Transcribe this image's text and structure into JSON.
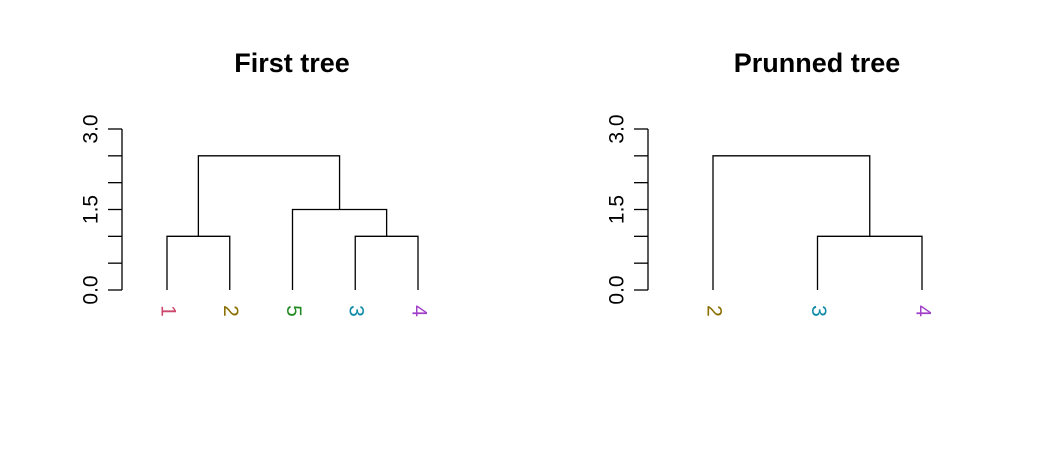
{
  "chart_data": [
    {
      "type": "dendrogram",
      "title": "First tree",
      "ylim": [
        0,
        3
      ],
      "ylabel": "",
      "xlabel": "",
      "y_ticks": [
        0.0,
        0.5,
        1.0,
        1.5,
        2.0,
        2.5,
        3.0
      ],
      "y_tick_labels": [
        "0.0",
        "1.5",
        "3.0"
      ],
      "leaves": [
        {
          "label": "1",
          "color": "#CC476B"
        },
        {
          "label": "2",
          "color": "#8B6F00"
        },
        {
          "label": "5",
          "color": "#238B23"
        },
        {
          "label": "3",
          "color": "#0F8BA8"
        },
        {
          "label": "4",
          "color": "#A040C8"
        }
      ],
      "merges": [
        {
          "left": "leaf:0",
          "right": "leaf:1",
          "height": 1.0
        },
        {
          "left": "leaf:3",
          "right": "leaf:4",
          "height": 1.0
        },
        {
          "left": "leaf:2",
          "right": "merge:1",
          "height": 1.5
        },
        {
          "left": "merge:0",
          "right": "merge:2",
          "height": 2.5
        }
      ]
    },
    {
      "type": "dendrogram",
      "title": "Prunned tree",
      "ylim": [
        0,
        3
      ],
      "ylabel": "",
      "xlabel": "",
      "y_ticks": [
        0.0,
        0.5,
        1.0,
        1.5,
        2.0,
        2.5,
        3.0
      ],
      "y_tick_labels": [
        "0.0",
        "1.5",
        "3.0"
      ],
      "leaves": [
        {
          "label": "2",
          "color": "#8B6F00"
        },
        {
          "label": "3",
          "color": "#0F8BA8"
        },
        {
          "label": "4",
          "color": "#A040C8"
        }
      ],
      "merges": [
        {
          "left": "leaf:1",
          "right": "leaf:2",
          "height": 1.0
        },
        {
          "left": "leaf:0",
          "right": "merge:0",
          "height": 2.5
        }
      ]
    }
  ]
}
